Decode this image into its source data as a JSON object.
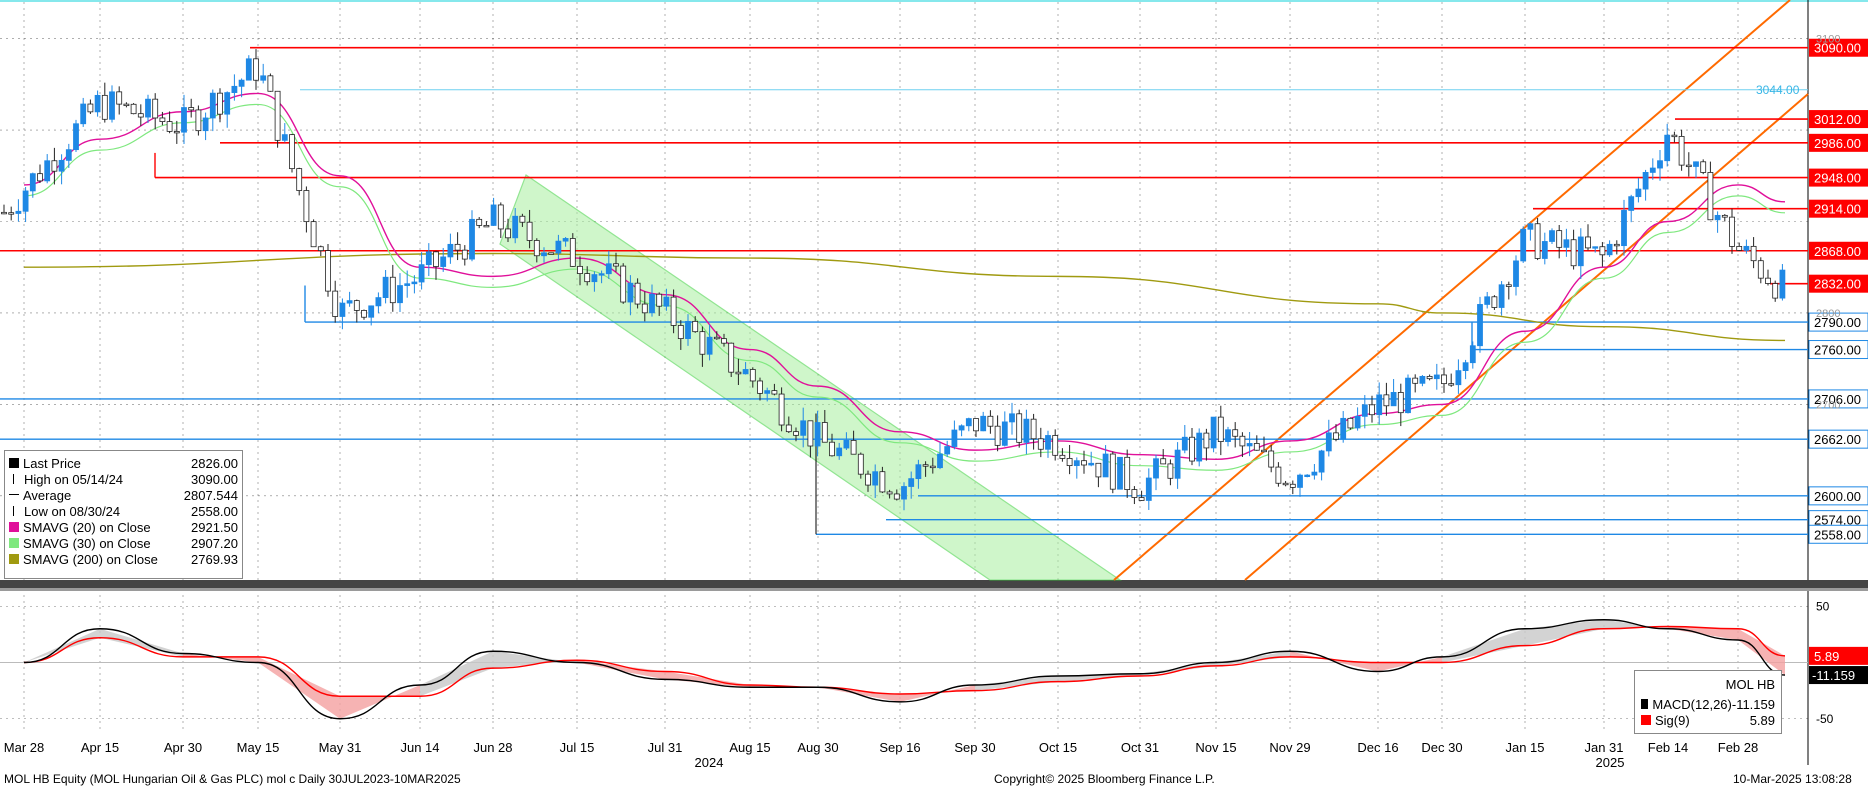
{
  "footer": {
    "security": "MOL HB Equity (MOL Hungarian Oil & Gas PLC) mol c  Daily 30JUL2023-10MAR2025",
    "copyright": "Copyright© 2025 Bloomberg Finance L.P.",
    "timestamp": "10-Mar-2025 13:08:28"
  },
  "legend": {
    "rows": [
      {
        "label": "Last Price",
        "value": "2826.00",
        "color": "#000000",
        "marker": "box"
      },
      {
        "label": "High on 05/14/24",
        "value": "3090.00",
        "color": "#000000",
        "marker": "high"
      },
      {
        "label": "Average",
        "value": "2807.544",
        "color": "#000000",
        "marker": "avg"
      },
      {
        "label": "Low on 08/30/24",
        "value": "2558.00",
        "color": "#000000",
        "marker": "low"
      },
      {
        "label": "SMAVG (20)  on Close",
        "value": "2921.50",
        "color": "#e0109a",
        "marker": "box"
      },
      {
        "label": "SMAVG (30)  on Close",
        "value": "2907.20",
        "color": "#7fe87f",
        "marker": "box"
      },
      {
        "label": "SMAVG (200)  on Close",
        "value": "2769.93",
        "color": "#a09a10",
        "marker": "box"
      }
    ]
  },
  "macd_box": {
    "title": "MOL HB",
    "rows": [
      {
        "label": "MACD(12,26)",
        "value": "-11.159",
        "color": "#000000"
      },
      {
        "label": "Sig(9)",
        "value": "5.89",
        "color": "#ff0000"
      }
    ]
  },
  "colors": {
    "up": "#1e88e5",
    "down": "#222222",
    "resistance": "#ff0000",
    "support": "#1e88e5",
    "channel_up": "#ff6a00",
    "channel_down_fill": "#a8f0a0",
    "sma20": "#e0109a",
    "sma30": "#7fe87f",
    "sma200": "#a09a10",
    "macd": "#000000",
    "signal": "#ff0000"
  },
  "chart_data": [
    {
      "type": "line",
      "title": "",
      "ylim": [
        2508,
        3140
      ],
      "x_ticks": [
        "Mar 28",
        "Apr 15",
        "Apr 30",
        "May 15",
        "May 31",
        "Jun 14",
        "Jun 28",
        "Jul 15",
        "Jul 31",
        "Aug 15",
        "Aug 30",
        "Sep 16",
        "Sep 30",
        "Oct 15",
        "Oct 31",
        "Nov 15",
        "Nov 29",
        "Dec 16",
        "Dec 30",
        "Jan 15",
        "Jan 31",
        "Feb 14",
        "Feb 28"
      ],
      "year_labels": [
        "2024",
        "2025"
      ],
      "y_ticks": [
        2700,
        2800,
        3100
      ],
      "price_path": [
        {
          "x": "Mar 28",
          "y": 2935
        },
        {
          "x": "Apr 15",
          "y": 3030
        },
        {
          "x": "Apr 30",
          "y": 3005
        },
        {
          "x": "May 15",
          "y": 3070
        },
        {
          "x": "May 31",
          "y": 2800
        },
        {
          "x": "Jun 14",
          "y": 2840
        },
        {
          "x": "Jun 28",
          "y": 2900
        },
        {
          "x": "Jul 15",
          "y": 2860
        },
        {
          "x": "Jul 31",
          "y": 2800
        },
        {
          "x": "Aug 15",
          "y": 2730
        },
        {
          "x": "Aug 30",
          "y": 2660
        },
        {
          "x": "Sep 16",
          "y": 2610
        },
        {
          "x": "Sep 30",
          "y": 2680
        },
        {
          "x": "Oct 15",
          "y": 2660
        },
        {
          "x": "Oct 31",
          "y": 2610
        },
        {
          "x": "Nov 15",
          "y": 2670
        },
        {
          "x": "Nov 29",
          "y": 2620
        },
        {
          "x": "Dec 16",
          "y": 2700
        },
        {
          "x": "Dec 30",
          "y": 2720
        },
        {
          "x": "Jan 15",
          "y": 2880
        },
        {
          "x": "Jan 31",
          "y": 2860
        },
        {
          "x": "Feb 14",
          "y": 3000
        },
        {
          "x": "Feb 28",
          "y": 2870
        },
        {
          "x": "Mar 10",
          "y": 2826
        }
      ],
      "sma20": [
        {
          "x": "Mar 28",
          "y": 2940
        },
        {
          "x": "Apr 15",
          "y": 2990
        },
        {
          "x": "Apr 30",
          "y": 3020
        },
        {
          "x": "May 15",
          "y": 3040
        },
        {
          "x": "May 31",
          "y": 2950
        },
        {
          "x": "Jun 14",
          "y": 2850
        },
        {
          "x": "Jun 28",
          "y": 2840
        },
        {
          "x": "Jul 15",
          "y": 2860
        },
        {
          "x": "Jul 31",
          "y": 2820
        },
        {
          "x": "Aug 15",
          "y": 2760
        },
        {
          "x": "Aug 30",
          "y": 2720
        },
        {
          "x": "Sep 16",
          "y": 2670
        },
        {
          "x": "Sep 30",
          "y": 2650
        },
        {
          "x": "Oct 15",
          "y": 2660
        },
        {
          "x": "Oct 31",
          "y": 2645
        },
        {
          "x": "Nov 15",
          "y": 2640
        },
        {
          "x": "Nov 29",
          "y": 2660
        },
        {
          "x": "Dec 16",
          "y": 2690
        },
        {
          "x": "Dec 30",
          "y": 2700
        },
        {
          "x": "Jan 15",
          "y": 2780
        },
        {
          "x": "Jan 31",
          "y": 2850
        },
        {
          "x": "Feb 14",
          "y": 2900
        },
        {
          "x": "Feb 28",
          "y": 2940
        },
        {
          "x": "Mar 10",
          "y": 2921.5
        }
      ],
      "sma200": [
        {
          "x": "Mar 28",
          "y": 2850
        },
        {
          "x": "Jun 28",
          "y": 2865
        },
        {
          "x": "Aug 15",
          "y": 2860
        },
        {
          "x": "Oct 15",
          "y": 2840
        },
        {
          "x": "Dec 16",
          "y": 2810
        },
        {
          "x": "Dec 30",
          "y": 2800
        },
        {
          "x": "Jan 31",
          "y": 2785
        },
        {
          "x": "Mar 10",
          "y": 2769.93
        }
      ],
      "levels": {
        "resistance": [
          "3090.00",
          "3012.00",
          "2986.00",
          "2948.00",
          "2914.00",
          "2868.00",
          "2832.00"
        ],
        "support": [
          "2790.00",
          "2760.00",
          "2706.00",
          "2662.00",
          "2600.00",
          "2574.00",
          "2558.00"
        ],
        "marker_3044": "3044.00"
      }
    },
    {
      "type": "line",
      "title": "",
      "ylim": [
        -60,
        60
      ],
      "y_ticks": [
        50,
        -50
      ],
      "series": [
        {
          "name": "MACD(12,26)",
          "points": [
            {
              "x": "Mar 28",
              "y": 0
            },
            {
              "x": "Apr 15",
              "y": 30
            },
            {
              "x": "Apr 30",
              "y": 8
            },
            {
              "x": "May 15",
              "y": 0
            },
            {
              "x": "May 31",
              "y": -50
            },
            {
              "x": "Jun 14",
              "y": -20
            },
            {
              "x": "Jun 28",
              "y": 10
            },
            {
              "x": "Jul 15",
              "y": 0
            },
            {
              "x": "Jul 31",
              "y": -15
            },
            {
              "x": "Aug 15",
              "y": -22
            },
            {
              "x": "Aug 30",
              "y": -22
            },
            {
              "x": "Sep 16",
              "y": -35
            },
            {
              "x": "Sep 30",
              "y": -20
            },
            {
              "x": "Oct 15",
              "y": -12
            },
            {
              "x": "Oct 31",
              "y": -10
            },
            {
              "x": "Nov 15",
              "y": 0
            },
            {
              "x": "Nov 29",
              "y": 10
            },
            {
              "x": "Dec 16",
              "y": -8
            },
            {
              "x": "Dec 30",
              "y": 5
            },
            {
              "x": "Jan 15",
              "y": 30
            },
            {
              "x": "Jan 31",
              "y": 38
            },
            {
              "x": "Feb 14",
              "y": 30
            },
            {
              "x": "Feb 28",
              "y": 20
            },
            {
              "x": "Mar 10",
              "y": -11.159
            }
          ]
        },
        {
          "name": "Sig(9)",
          "points": [
            {
              "x": "Mar 28",
              "y": 0
            },
            {
              "x": "Apr 15",
              "y": 22
            },
            {
              "x": "Apr 30",
              "y": 5
            },
            {
              "x": "May 15",
              "y": 5
            },
            {
              "x": "May 31",
              "y": -30
            },
            {
              "x": "Jun 14",
              "y": -30
            },
            {
              "x": "Jun 28",
              "y": -5
            },
            {
              "x": "Jul 15",
              "y": 2
            },
            {
              "x": "Jul 31",
              "y": -8
            },
            {
              "x": "Aug 15",
              "y": -20
            },
            {
              "x": "Aug 30",
              "y": -22
            },
            {
              "x": "Sep 16",
              "y": -28
            },
            {
              "x": "Sep 30",
              "y": -25
            },
            {
              "x": "Oct 15",
              "y": -17
            },
            {
              "x": "Oct 31",
              "y": -12
            },
            {
              "x": "Nov 15",
              "y": -3
            },
            {
              "x": "Nov 29",
              "y": 5
            },
            {
              "x": "Dec 16",
              "y": 0
            },
            {
              "x": "Dec 30",
              "y": 0
            },
            {
              "x": "Jan 15",
              "y": 15
            },
            {
              "x": "Jan 31",
              "y": 30
            },
            {
              "x": "Feb 14",
              "y": 32
            },
            {
              "x": "Feb 28",
              "y": 30
            },
            {
              "x": "Mar 10",
              "y": 5.89
            }
          ]
        }
      ],
      "value_labels": [
        "5.89",
        "-11.159"
      ]
    }
  ]
}
